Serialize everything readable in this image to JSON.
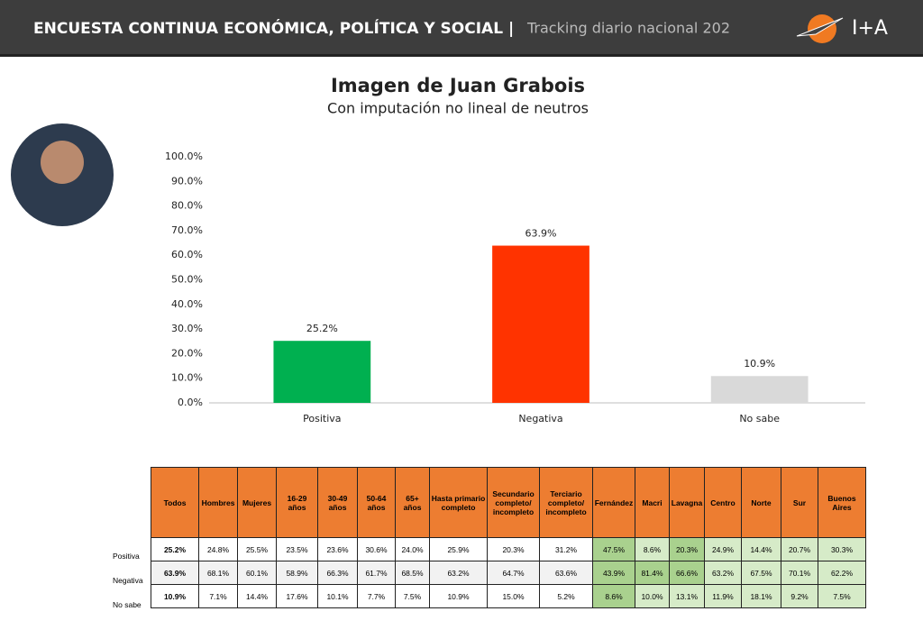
{
  "header": {
    "title": "ENCUESTA CONTINUA ECONÓMICA, POLÍTICA Y SOCIAL |",
    "subtitle": "Tracking diario nacional 202",
    "logo": "I+A"
  },
  "chart_data": {
    "type": "bar",
    "title": "Imagen de Juan Grabois",
    "subtitle": "Con imputación no lineal de neutros",
    "categories": [
      "Positiva",
      "Negativa",
      "No sabe"
    ],
    "values": [
      25.2,
      63.9,
      10.9
    ],
    "value_labels": [
      "25.2%",
      "63.9%",
      "10.9%"
    ],
    "colors": [
      "#00b050",
      "#ff3300",
      "#d9d9d9"
    ],
    "ylim": [
      0,
      100
    ],
    "yticks": [
      {
        "value": 0,
        "label": "0.0%"
      },
      {
        "value": 10,
        "label": "10.0%"
      },
      {
        "value": 20,
        "label": "20.0%"
      },
      {
        "value": 30,
        "label": "30.0%"
      },
      {
        "value": 40,
        "label": "40.0%"
      },
      {
        "value": 50,
        "label": "50.0%"
      },
      {
        "value": 60,
        "label": "60.0%"
      },
      {
        "value": 70,
        "label": "70.0%"
      },
      {
        "value": 80,
        "label": "80.0%"
      },
      {
        "value": 90,
        "label": "90.0%"
      },
      {
        "value": 100,
        "label": "100.0%"
      }
    ],
    "grid": false
  },
  "table": {
    "headers": [
      "Todos",
      "Hombres",
      "Mujeres",
      "16-29 años",
      "30-49 años",
      "50-64 años",
      "65+ años",
      "Hasta primario completo",
      "Secundario completo/ incompleto",
      "Terciario completo/ incompleto",
      "Fernández",
      "Macri",
      "Lavagna",
      "Centro",
      "Norte",
      "Sur",
      "Buenos Aires"
    ],
    "rows": [
      {
        "label": "Positiva",
        "cells": [
          "25.2%",
          "24.8%",
          "25.5%",
          "23.5%",
          "23.6%",
          "30.6%",
          "24.0%",
          "25.9%",
          "20.3%",
          "31.2%",
          "47.5%",
          "8.6%",
          "20.3%",
          "24.9%",
          "14.4%",
          "20.7%",
          "30.3%"
        ]
      },
      {
        "label": "Negativa",
        "cells": [
          "63.9%",
          "68.1%",
          "60.1%",
          "58.9%",
          "66.3%",
          "61.7%",
          "68.5%",
          "63.2%",
          "64.7%",
          "63.6%",
          "43.9%",
          "81.4%",
          "66.6%",
          "63.2%",
          "67.5%",
          "70.1%",
          "62.2%"
        ]
      },
      {
        "label": "No sabe",
        "cells": [
          "10.9%",
          "7.1%",
          "14.4%",
          "17.6%",
          "10.1%",
          "7.7%",
          "7.5%",
          "10.9%",
          "15.0%",
          "5.2%",
          "8.6%",
          "10.0%",
          "13.1%",
          "11.9%",
          "18.1%",
          "9.2%",
          "7.5%"
        ]
      }
    ]
  }
}
